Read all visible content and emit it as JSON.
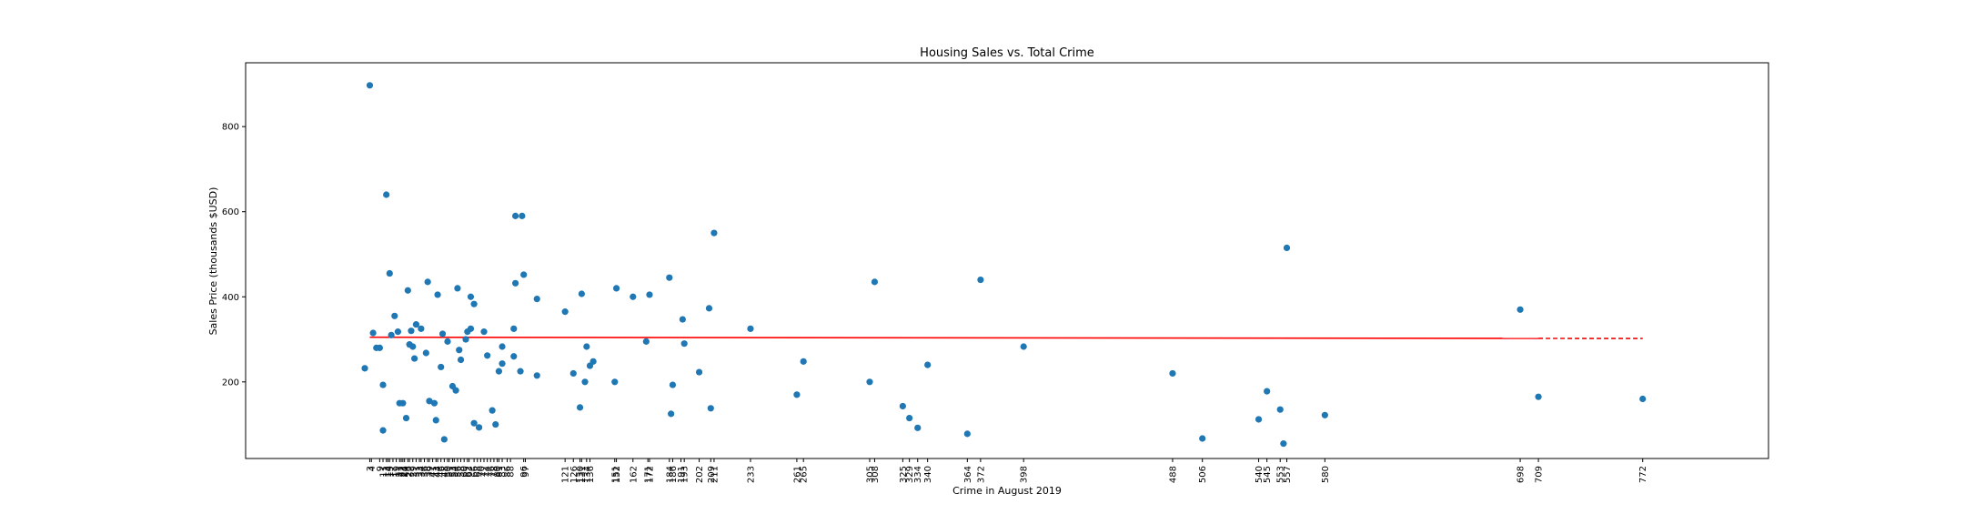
{
  "chart_data": {
    "type": "scatter",
    "title": "Housing Sales vs. Total Crime",
    "xlabel": "Crime in August 2019",
    "ylabel": "Sales Price (thousands $USD)",
    "xlim": [
      -72,
      848
    ],
    "ylim": [
      20,
      950
    ],
    "yticks": [
      200,
      400,
      600,
      800
    ],
    "xticks": [
      3,
      4,
      9,
      11,
      13,
      14,
      15,
      17,
      19,
      21,
      22,
      23,
      24,
      26,
      27,
      29,
      31,
      33,
      34,
      36,
      38,
      39,
      41,
      43,
      44,
      46,
      48,
      50,
      51,
      53,
      54,
      56,
      58,
      60,
      62,
      63,
      66,
      68,
      70,
      72,
      74,
      76,
      78,
      80,
      81,
      83,
      86,
      88,
      96,
      97,
      121,
      126,
      130,
      131,
      134,
      136,
      151,
      152,
      162,
      171,
      172,
      184,
      186,
      191,
      193,
      202,
      209,
      211,
      233,
      261,
      265,
      305,
      308,
      325,
      329,
      334,
      340,
      364,
      372,
      398,
      488,
      506,
      540,
      545,
      553,
      557,
      580,
      698,
      709,
      772
    ],
    "colors": {
      "points": "#1f77b4",
      "fit": "#ff0000"
    },
    "fit_line": {
      "x": [
        3,
        772
      ],
      "y": [
        305,
        302
      ],
      "solid_until_x": 709
    },
    "points": [
      {
        "x": 0,
        "y": 232
      },
      {
        "x": 3,
        "y": 897
      },
      {
        "x": 5,
        "y": 315
      },
      {
        "x": 7,
        "y": 280
      },
      {
        "x": 9,
        "y": 280
      },
      {
        "x": 11,
        "y": 193
      },
      {
        "x": 11,
        "y": 86
      },
      {
        "x": 13,
        "y": 640
      },
      {
        "x": 15,
        "y": 455
      },
      {
        "x": 16,
        "y": 310
      },
      {
        "x": 18,
        "y": 355
      },
      {
        "x": 20,
        "y": 318
      },
      {
        "x": 21,
        "y": 150
      },
      {
        "x": 23,
        "y": 150
      },
      {
        "x": 25,
        "y": 115
      },
      {
        "x": 26,
        "y": 415
      },
      {
        "x": 27,
        "y": 288
      },
      {
        "x": 28,
        "y": 320
      },
      {
        "x": 29,
        "y": 283
      },
      {
        "x": 30,
        "y": 255
      },
      {
        "x": 31,
        "y": 335
      },
      {
        "x": 34,
        "y": 325
      },
      {
        "x": 37,
        "y": 268
      },
      {
        "x": 38,
        "y": 435
      },
      {
        "x": 39,
        "y": 155
      },
      {
        "x": 42,
        "y": 150
      },
      {
        "x": 43,
        "y": 110
      },
      {
        "x": 44,
        "y": 405
      },
      {
        "x": 46,
        "y": 235
      },
      {
        "x": 47,
        "y": 313
      },
      {
        "x": 48,
        "y": 65
      },
      {
        "x": 50,
        "y": 295
      },
      {
        "x": 53,
        "y": 190
      },
      {
        "x": 55,
        "y": 180
      },
      {
        "x": 56,
        "y": 420
      },
      {
        "x": 57,
        "y": 275
      },
      {
        "x": 58,
        "y": 252
      },
      {
        "x": 61,
        "y": 300
      },
      {
        "x": 62,
        "y": 318
      },
      {
        "x": 64,
        "y": 325
      },
      {
        "x": 64,
        "y": 400
      },
      {
        "x": 66,
        "y": 383
      },
      {
        "x": 66,
        "y": 103
      },
      {
        "x": 69,
        "y": 93
      },
      {
        "x": 72,
        "y": 318
      },
      {
        "x": 74,
        "y": 262
      },
      {
        "x": 77,
        "y": 133
      },
      {
        "x": 79,
        "y": 100
      },
      {
        "x": 81,
        "y": 225
      },
      {
        "x": 83,
        "y": 283
      },
      {
        "x": 83,
        "y": 243
      },
      {
        "x": 90,
        "y": 260
      },
      {
        "x": 90,
        "y": 325
      },
      {
        "x": 91,
        "y": 590
      },
      {
        "x": 91,
        "y": 432
      },
      {
        "x": 94,
        "y": 225
      },
      {
        "x": 95,
        "y": 590
      },
      {
        "x": 96,
        "y": 452
      },
      {
        "x": 104,
        "y": 215
      },
      {
        "x": 104,
        "y": 395
      },
      {
        "x": 121,
        "y": 365
      },
      {
        "x": 126,
        "y": 220
      },
      {
        "x": 130,
        "y": 140
      },
      {
        "x": 131,
        "y": 407
      },
      {
        "x": 133,
        "y": 200
      },
      {
        "x": 134,
        "y": 283
      },
      {
        "x": 136,
        "y": 238
      },
      {
        "x": 138,
        "y": 248
      },
      {
        "x": 151,
        "y": 200
      },
      {
        "x": 152,
        "y": 420
      },
      {
        "x": 162,
        "y": 400
      },
      {
        "x": 170,
        "y": 295
      },
      {
        "x": 172,
        "y": 405
      },
      {
        "x": 184,
        "y": 445
      },
      {
        "x": 185,
        "y": 125
      },
      {
        "x": 186,
        "y": 193
      },
      {
        "x": 192,
        "y": 347
      },
      {
        "x": 193,
        "y": 290
      },
      {
        "x": 202,
        "y": 223
      },
      {
        "x": 208,
        "y": 373
      },
      {
        "x": 209,
        "y": 138
      },
      {
        "x": 211,
        "y": 550
      },
      {
        "x": 233,
        "y": 325
      },
      {
        "x": 261,
        "y": 170
      },
      {
        "x": 265,
        "y": 248
      },
      {
        "x": 305,
        "y": 200
      },
      {
        "x": 308,
        "y": 435
      },
      {
        "x": 325,
        "y": 143
      },
      {
        "x": 329,
        "y": 115
      },
      {
        "x": 334,
        "y": 92
      },
      {
        "x": 340,
        "y": 240
      },
      {
        "x": 364,
        "y": 78
      },
      {
        "x": 372,
        "y": 440
      },
      {
        "x": 398,
        "y": 283
      },
      {
        "x": 488,
        "y": 220
      },
      {
        "x": 506,
        "y": 67
      },
      {
        "x": 540,
        "y": 112
      },
      {
        "x": 545,
        "y": 178
      },
      {
        "x": 553,
        "y": 135
      },
      {
        "x": 557,
        "y": 515
      },
      {
        "x": 555,
        "y": 55
      },
      {
        "x": 580,
        "y": 122
      },
      {
        "x": 698,
        "y": 370
      },
      {
        "x": 709,
        "y": 165
      },
      {
        "x": 772,
        "y": 160
      }
    ]
  }
}
